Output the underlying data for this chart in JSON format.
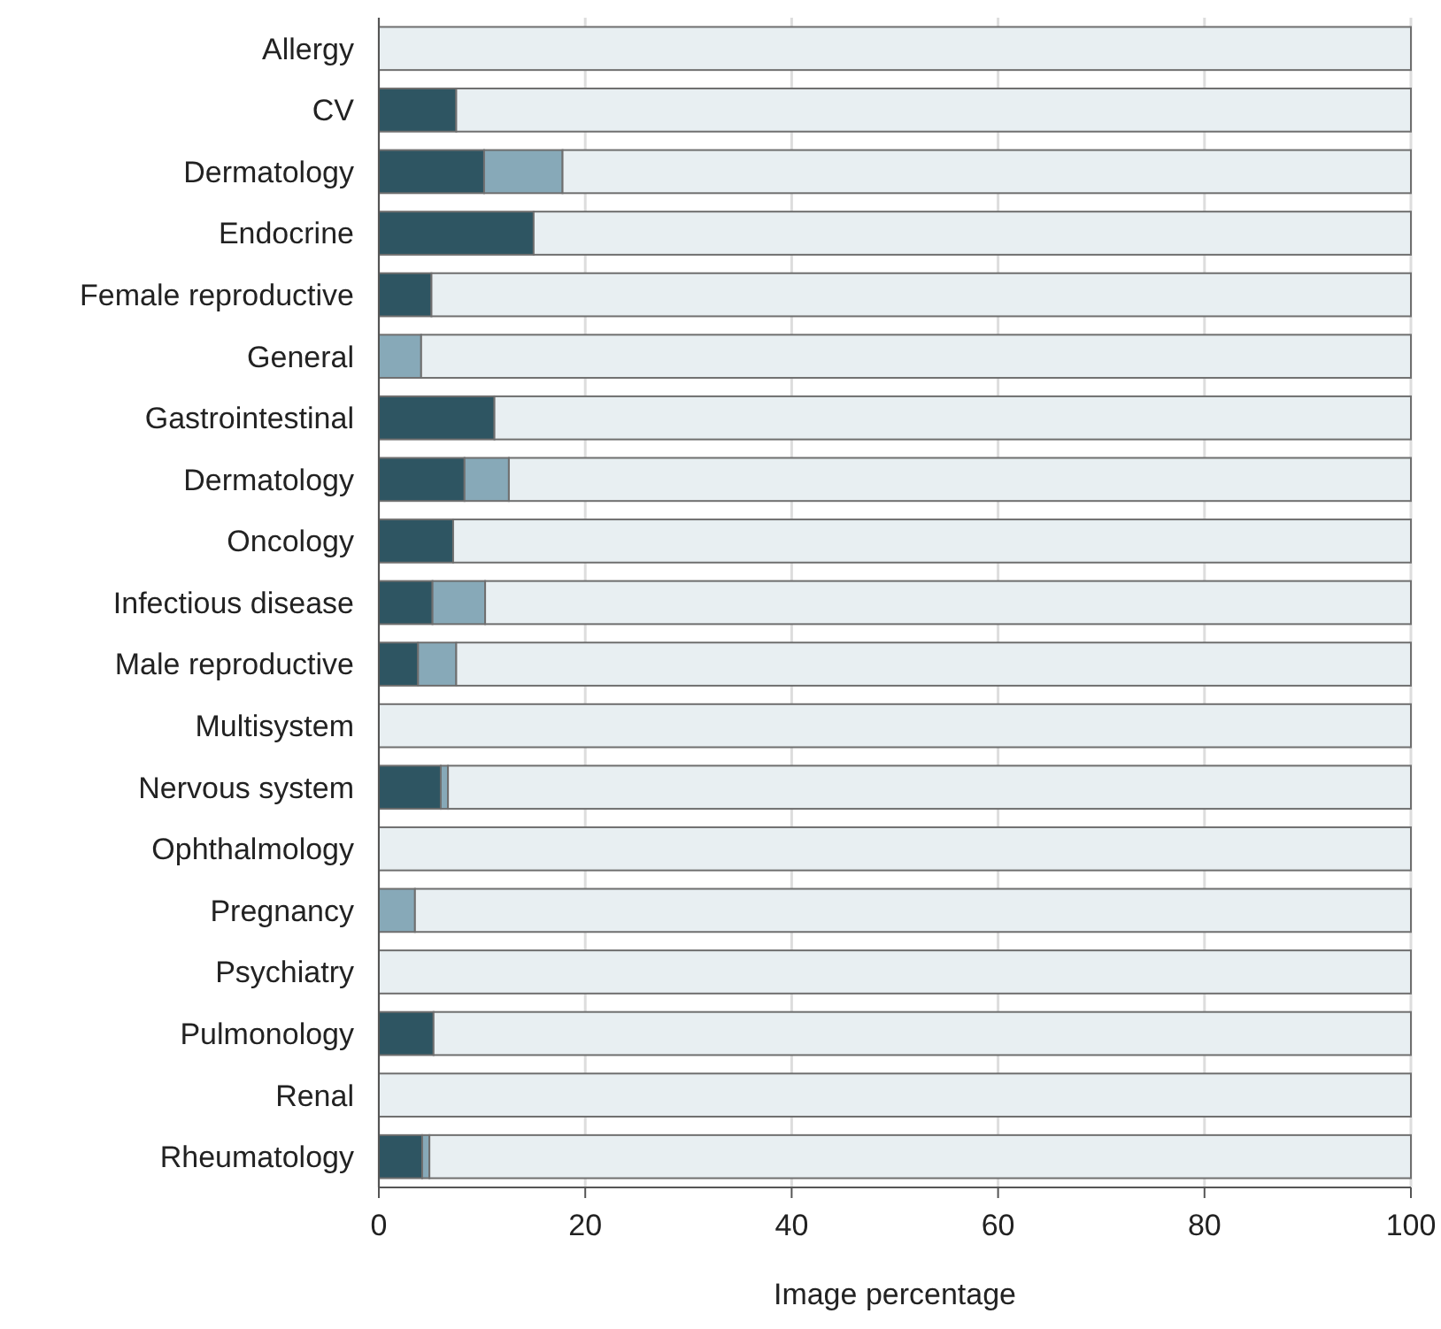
{
  "chart_data": {
    "type": "bar",
    "orientation": "horizontal",
    "stacked": true,
    "xlabel": "Image percentage",
    "categories": [
      "Allergy",
      "CV",
      "Dermatology",
      "Endocrine",
      "Female reproductive",
      "General",
      "Gastrointestinal",
      "Dermatology",
      "Oncology",
      "Infectious disease",
      "Male reproductive",
      "Multisystem",
      "Nervous system",
      "Ophthalmology",
      "Pregnancy",
      "Psychiatry",
      "Pulmonology",
      "Renal",
      "Rheumatology"
    ],
    "series": [
      {
        "color": "#2e5562",
        "values": [
          0,
          7.5,
          10.2,
          15.0,
          5.1,
          0,
          11.2,
          8.3,
          7.2,
          5.2,
          3.8,
          0,
          6.0,
          0,
          0,
          0,
          5.3,
          0,
          4.2
        ]
      },
      {
        "color": "#87a9b8",
        "values": [
          0,
          0,
          7.6,
          0,
          0,
          4.1,
          0,
          4.3,
          0,
          5.1,
          3.7,
          0,
          0.7,
          0,
          3.5,
          0,
          0,
          0,
          0.7
        ]
      },
      {
        "color": "#e8eff2",
        "values": [
          100,
          92.5,
          82.2,
          85.0,
          94.9,
          95.9,
          88.8,
          87.4,
          92.8,
          89.7,
          92.5,
          100,
          93.3,
          100,
          96.5,
          100,
          94.7,
          100,
          95.1
        ]
      }
    ],
    "xlim": [
      0,
      100
    ],
    "xticks": [
      0,
      20,
      40,
      60,
      80,
      100
    ],
    "grid": "x"
  }
}
